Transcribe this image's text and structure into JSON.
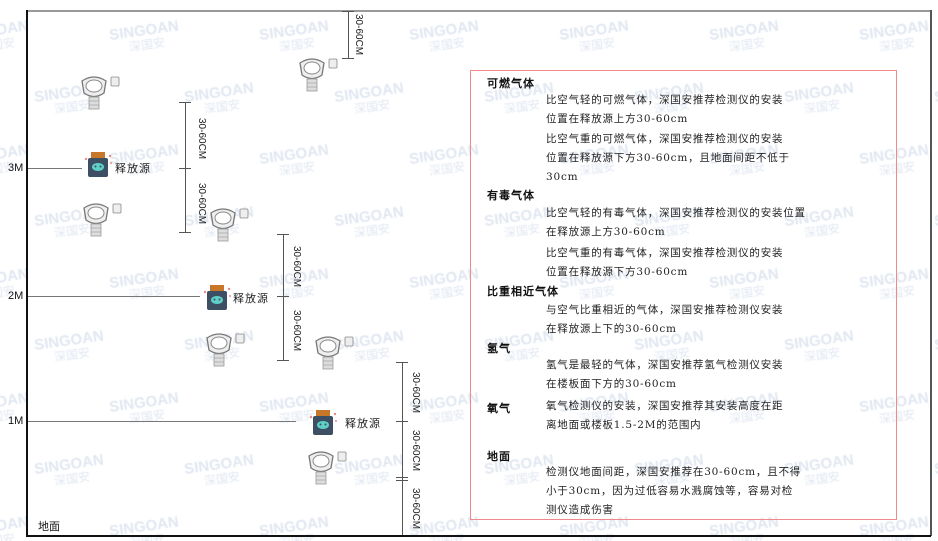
{
  "watermark": {
    "brand": "SINGOAN",
    "cn": "深国安"
  },
  "levels": [
    {
      "label": "3M"
    },
    {
      "label": "2M"
    },
    {
      "label": "1M"
    }
  ],
  "ground_label": "地面",
  "source_label": "释放源",
  "dimension_label": "30-60CM",
  "legend": {
    "sections": [
      {
        "title": "可燃气体",
        "paras": [
          "比空气轻的可燃气体，深国安推荐检测仪的安装\n位置在释放源上方30-60cm",
          "比空气重的可燃气体，深国安推荐检测仪的安装\n位置在释放源下方30-60cm，且地面间距不低于\n30cm"
        ]
      },
      {
        "title": "有毒气体",
        "paras": [
          "比空气轻的有毒气体，深国安推荐检测仪的安装位置\n在释放源上方30-60cm",
          "比空气重的有毒气体，深国安推荐检测仪的安装\n位置在释放源下方30-60cm"
        ]
      },
      {
        "title": "比重相近气体",
        "paras": [
          "与空气比重相近的气体，深国安推荐检测仪安装\n在释放源上下的30-60cm"
        ]
      },
      {
        "title": "氢气",
        "paras": [
          "氢气是最轻的气体，深国安推荐氢气检测仪安装\n在楼板面下方的30-60cm"
        ]
      },
      {
        "title": "氧气",
        "paras": [
          "氧气检测仪的安装，深国安推荐其安装高度在距\n离地面或楼板1.5-2M的范围内"
        ]
      },
      {
        "title": "地面",
        "paras": [
          "检测仪地面间距，深国安推荐在30-60cm，且不得\n小于30cm，因为过低容易水溅腐蚀等，容易对检\n测仪造成伤害"
        ]
      }
    ]
  },
  "colors": {
    "frame": "#111111",
    "legend_border": "#f08a8a",
    "source_body": "#3d4f63",
    "source_cap": "#c7762a",
    "source_face": "#5fd0c8"
  }
}
